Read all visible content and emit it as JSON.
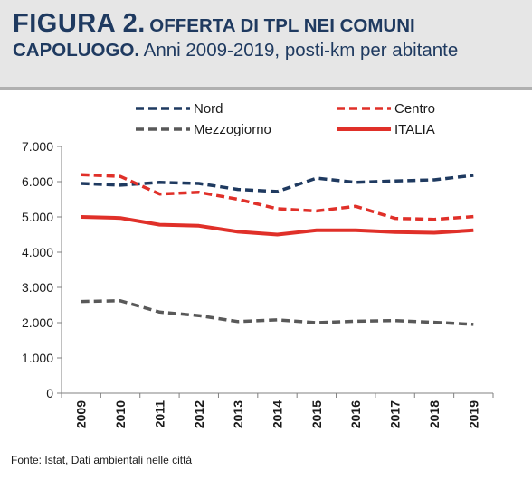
{
  "figure": {
    "label": "FIGURA 2.",
    "title_line1": "OFFERTA DI TPL NEI COMUNI",
    "title_line2_bold": "CAPOLUOGO.",
    "subtitle": "Anni 2009-2019, posti-km per abitante"
  },
  "footnote": "Fonte: Istat, Dati ambientali nelle città",
  "colors": {
    "nord": "#1f3a60",
    "centro": "#e03029",
    "mezzogiorno": "#595959",
    "italia": "#e03029",
    "title": "#1f3a60",
    "header_bg": "#e6e6e6"
  },
  "chart_data": {
    "type": "line",
    "title": "OFFERTA DI TPL NEI COMUNI CAPOLUOGO",
    "subtitle": "Anni 2009-2019, posti-km per abitante",
    "xlabel": "",
    "ylabel": "",
    "x": [
      "2009",
      "2010",
      "2011",
      "2012",
      "2013",
      "2014",
      "2015",
      "2016",
      "2017",
      "2018",
      "2019"
    ],
    "y_ticks": [
      "0",
      "1.000",
      "2.000",
      "3.000",
      "4.000",
      "5.000",
      "6.000",
      "7.000"
    ],
    "ylim": [
      0,
      7000
    ],
    "grid": false,
    "legend_position": "top",
    "series": [
      {
        "name": "Nord",
        "style": "dashed",
        "color": "#1f3a60",
        "values": [
          5950,
          5900,
          5980,
          5950,
          5780,
          5720,
          6100,
          5980,
          6020,
          6050,
          6180
        ]
      },
      {
        "name": "Centro",
        "style": "dashed",
        "color": "#e03029",
        "values": [
          6200,
          6150,
          5650,
          5700,
          5500,
          5230,
          5170,
          5300,
          4960,
          4930,
          5010
        ]
      },
      {
        "name": "Mezzogiorno",
        "style": "dashed",
        "color": "#595959",
        "values": [
          2600,
          2620,
          2300,
          2200,
          2030,
          2080,
          2000,
          2040,
          2060,
          2010,
          1950
        ]
      },
      {
        "name": "ITALIA",
        "style": "solid",
        "color": "#e03029",
        "values": [
          5000,
          4970,
          4780,
          4750,
          4580,
          4500,
          4620,
          4620,
          4570,
          4550,
          4620
        ]
      }
    ]
  }
}
